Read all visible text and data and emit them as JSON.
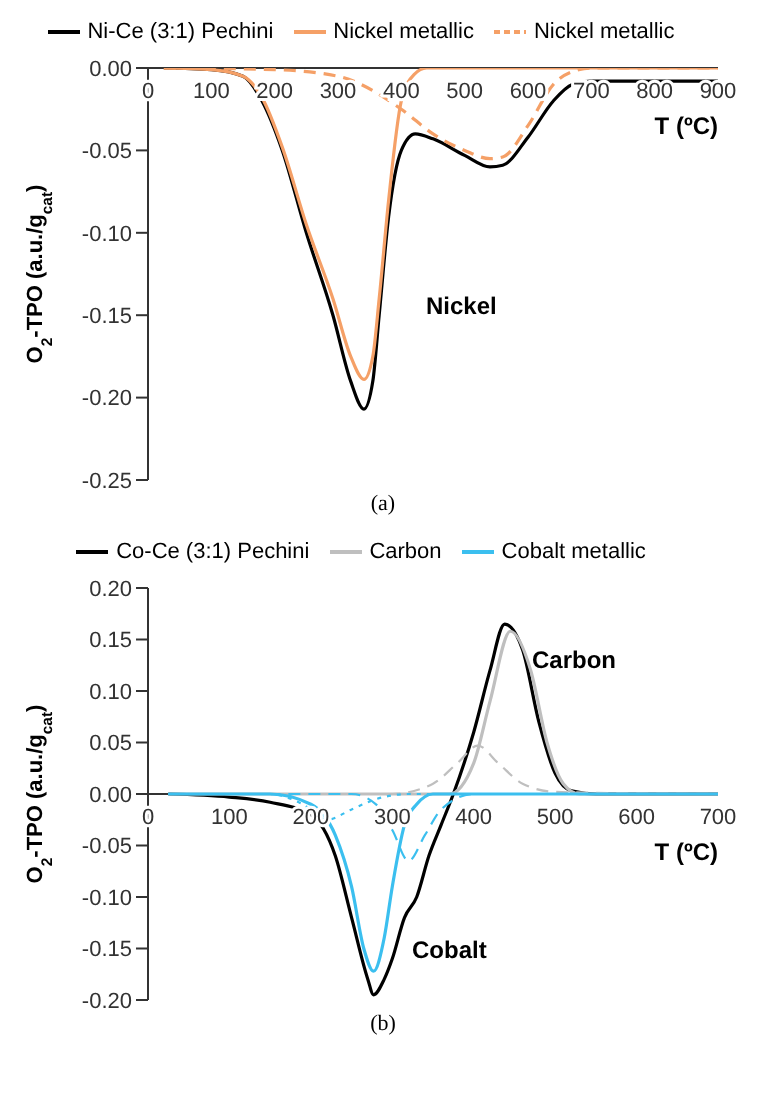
{
  "chart_data": [
    {
      "type": "line",
      "xlabel": "T (ºC)",
      "ylabel": "O$_{2}$-TPO (a.u./g$_{cat}$)",
      "xlim": [
        0,
        900
      ],
      "xticks": [
        0,
        100,
        200,
        300,
        400,
        500,
        600,
        700,
        800,
        900
      ],
      "ylim": [
        -0.25,
        0
      ],
      "yticks": [
        {
          "value": 0,
          "label": "0.00"
        },
        {
          "value": -0.05,
          "label": "-0.05"
        },
        {
          "value": -0.1,
          "label": "-0.10"
        },
        {
          "value": -0.15,
          "label": "-0.15"
        },
        {
          "value": -0.2,
          "label": "-0.20"
        },
        {
          "value": -0.25,
          "label": "-0.25"
        }
      ],
      "legend": "top",
      "marker": "none",
      "grid": false,
      "series": [
        {
          "name": "Ni-Ce (3:1) Pechini",
          "color": "#000000",
          "line_style": "solid",
          "x": [
            25,
            100,
            150,
            180,
            212,
            250,
            292,
            320,
            341,
            355,
            365,
            380,
            400,
            422,
            450,
            500,
            540,
            560,
            600,
            640,
            670,
            700,
            800,
            900
          ],
          "values": [
            0,
            -0.001,
            -0.005,
            -0.02,
            -0.05,
            -0.1,
            -0.15,
            -0.19,
            -0.207,
            -0.19,
            -0.15,
            -0.09,
            -0.05,
            -0.04,
            -0.043,
            -0.053,
            -0.06,
            -0.059,
            -0.042,
            -0.02,
            -0.01,
            -0.008,
            -0.008,
            -0.008
          ]
        },
        {
          "name": "Nickel metallic",
          "color": "#f5a067",
          "line_style": "solid",
          "x": [
            25,
            100,
            150,
            180,
            212,
            250,
            292,
            320,
            341,
            355,
            365,
            380,
            400,
            420,
            440,
            900
          ],
          "values": [
            0,
            -0.001,
            -0.005,
            -0.018,
            -0.048,
            -0.095,
            -0.14,
            -0.175,
            -0.189,
            -0.175,
            -0.14,
            -0.08,
            -0.02,
            -0.004,
            0,
            0
          ]
        },
        {
          "name": "Nickel metallic",
          "color": "#f5a067",
          "line_style": "dashed",
          "x": [
            25,
            200,
            300,
            400,
            450,
            500,
            540,
            560,
            600,
            640,
            680,
            700,
            900
          ],
          "values": [
            0,
            -0.001,
            -0.005,
            -0.025,
            -0.04,
            -0.05,
            -0.055,
            -0.054,
            -0.035,
            -0.01,
            -0.001,
            0,
            0
          ]
        }
      ],
      "annotations": [
        "Nickel",
        "(a)"
      ]
    },
    {
      "type": "line",
      "xlabel": "T (ºC)",
      "ylabel": "O$_{2}$-TPO (a.u./g$_{cat}$)",
      "xlim": [
        0,
        700
      ],
      "xticks": [
        0,
        100,
        200,
        300,
        400,
        500,
        600,
        700
      ],
      "ylim": [
        -0.2,
        0.2
      ],
      "yticks": [
        {
          "value": 0.2,
          "label": "0.20"
        },
        {
          "value": 0.15,
          "label": "0.15"
        },
        {
          "value": 0.1,
          "label": "0.10"
        },
        {
          "value": 0.05,
          "label": "0.05"
        },
        {
          "value": 0,
          "label": "0.00"
        },
        {
          "value": -0.05,
          "label": "-0.05"
        },
        {
          "value": -0.1,
          "label": "-0.10"
        },
        {
          "value": -0.15,
          "label": "-0.15"
        },
        {
          "value": -0.2,
          "label": "-0.20"
        }
      ],
      "legend": "top",
      "marker": "none",
      "grid": false,
      "series": [
        {
          "name": "Co-Ce (3:1) Pechini",
          "color": "#000000",
          "line_style": "solid",
          "x": [
            25,
            100,
            150,
            200,
            230,
            250,
            270,
            277,
            290,
            300,
            315,
            330,
            345,
            360,
            375,
            400,
            420,
            438,
            460,
            480,
            500,
            520,
            550,
            700
          ],
          "values": [
            0,
            -0.003,
            -0.008,
            -0.02,
            -0.06,
            -0.12,
            -0.18,
            -0.195,
            -0.18,
            -0.16,
            -0.12,
            -0.1,
            -0.06,
            -0.03,
            0,
            0.06,
            0.12,
            0.165,
            0.14,
            0.07,
            0.02,
            0.003,
            0,
            0
          ]
        },
        {
          "name": "Carbon",
          "color": "#bfbfbf",
          "line_style": "solid",
          "x": [
            25,
            370,
            400,
            420,
            445,
            470,
            490,
            510,
            530,
            700
          ],
          "values": [
            0,
            0,
            0.03,
            0.09,
            0.158,
            0.12,
            0.05,
            0.01,
            0,
            0
          ]
        },
        {
          "color": "#bfbfbf",
          "line_style": "dashed",
          "x": [
            25,
            300,
            350,
            380,
            405,
            430,
            460,
            500,
            700
          ],
          "values": [
            0,
            0,
            0.01,
            0.03,
            0.047,
            0.03,
            0.01,
            0.002,
            0
          ]
        },
        {
          "name": "Cobalt metallic",
          "color": "#3bbfef",
          "line_style": "solid",
          "x": [
            25,
            150,
            200,
            230,
            250,
            265,
            277,
            290,
            300,
            315,
            330,
            350,
            700
          ],
          "values": [
            0,
            0,
            -0.01,
            -0.04,
            -0.09,
            -0.15,
            -0.172,
            -0.14,
            -0.09,
            -0.03,
            -0.01,
            0,
            0
          ]
        },
        {
          "color": "#3bbfef",
          "line_style": "dashed",
          "x": [
            25,
            250,
            280,
            300,
            320,
            340,
            360,
            400,
            700
          ],
          "values": [
            0,
            0,
            -0.01,
            -0.035,
            -0.065,
            -0.04,
            -0.015,
            0,
            0
          ]
        },
        {
          "color": "#3bbfef",
          "line_style": "dotted",
          "x": [
            25,
            150,
            190,
            220,
            250,
            280,
            320,
            700
          ],
          "values": [
            0,
            0,
            -0.01,
            -0.025,
            -0.015,
            -0.005,
            0,
            0
          ]
        }
      ],
      "annotations": [
        "Carbon",
        "Cobalt",
        "(b)"
      ]
    }
  ]
}
